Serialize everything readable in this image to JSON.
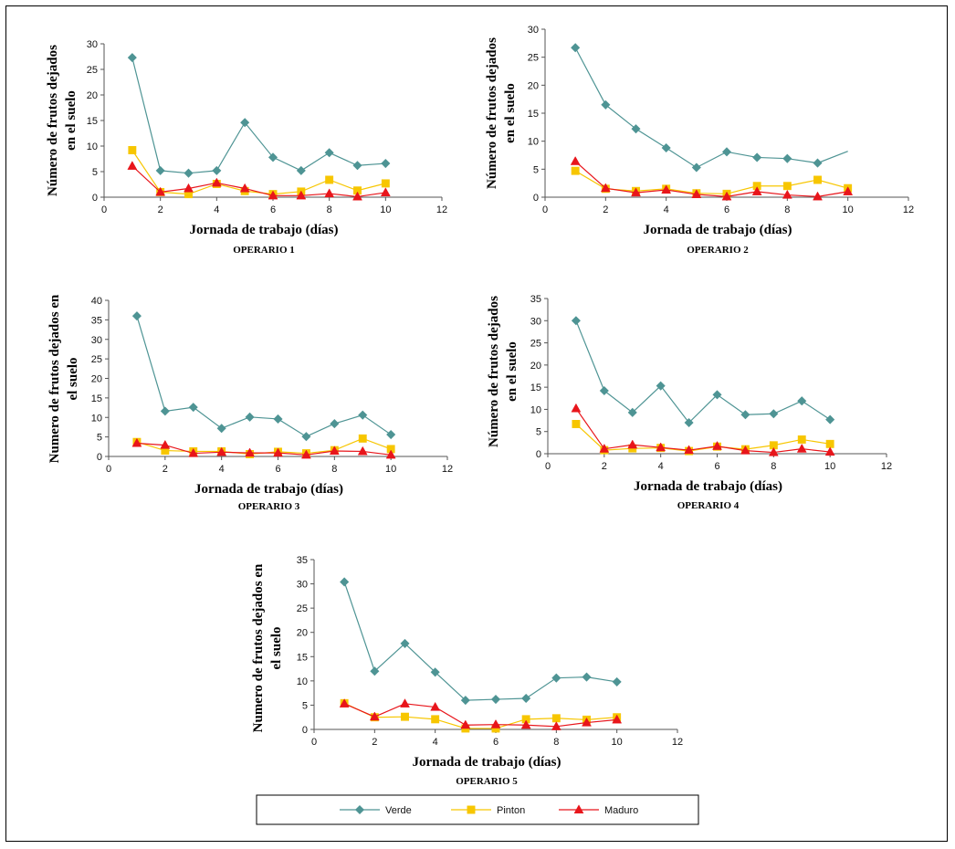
{
  "chart_data": [
    {
      "type": "line",
      "xlabel": "Jornada de trabajo (días)",
      "subtitle": "OPERARIO 1",
      "ylabel": [
        "Número de frutos dejados",
        "en el suelo"
      ],
      "xlim": [
        0,
        12
      ],
      "xticks": [
        0,
        2,
        4,
        6,
        8,
        10,
        12
      ],
      "ylim": [
        0,
        30
      ],
      "yticks": [
        0,
        5,
        10,
        15,
        20,
        25,
        30
      ],
      "x": [
        1,
        2,
        3,
        4,
        5,
        6,
        7,
        8,
        9,
        10
      ],
      "series": [
        {
          "name": "Verde",
          "values": [
            27.3,
            5.2,
            4.7,
            5.2,
            14.6,
            7.8,
            5.2,
            8.7,
            6.2,
            6.6
          ]
        },
        {
          "name": "Pinton",
          "values": [
            9.2,
            1.0,
            0.6,
            2.6,
            1.2,
            0.6,
            1.1,
            3.4,
            1.3,
            2.7
          ]
        },
        {
          "name": "Maduro",
          "values": [
            6.1,
            1.0,
            1.7,
            2.8,
            1.7,
            0.3,
            0.3,
            0.7,
            0.1,
            0.9
          ]
        }
      ]
    },
    {
      "type": "line",
      "xlabel": "Jornada de trabajo (días)",
      "subtitle": "OPERARIO 2",
      "ylabel": [
        "Número de frutos dejados",
        "en el suelo"
      ],
      "xlim": [
        0,
        12
      ],
      "xticks": [
        0,
        2,
        4,
        6,
        8,
        10,
        12
      ],
      "ylim": [
        0,
        30
      ],
      "yticks": [
        0,
        5,
        10,
        15,
        20,
        25,
        30
      ],
      "x": [
        1,
        2,
        3,
        4,
        5,
        6,
        7,
        8,
        9,
        10
      ],
      "series": [
        {
          "name": "Verde",
          "values": [
            26.7,
            16.5,
            12.2,
            8.8,
            5.3,
            8.1,
            7.1,
            6.9,
            6.1,
            8.2
          ]
        },
        {
          "name": "Pinton",
          "values": [
            4.7,
            1.5,
            1.1,
            1.5,
            0.7,
            0.6,
            2.0,
            2.0,
            3.1,
            1.6
          ]
        },
        {
          "name": "Maduro",
          "values": [
            6.4,
            1.6,
            0.8,
            1.3,
            0.5,
            0.1,
            1.0,
            0.4,
            0.1,
            1.0
          ]
        }
      ],
      "verde_last_marker": false
    },
    {
      "type": "line",
      "xlabel": "Jornada de trabajo (días)",
      "subtitle": "OPERARIO 3",
      "ylabel": [
        "Numero de frutos dejados en",
        "el suelo"
      ],
      "xlim": [
        0,
        12
      ],
      "xticks": [
        0,
        2,
        4,
        6,
        8,
        10,
        12
      ],
      "ylim": [
        0,
        40
      ],
      "yticks": [
        0,
        5,
        10,
        15,
        20,
        25,
        30,
        35,
        40
      ],
      "x": [
        1,
        2,
        3,
        4,
        5,
        6,
        7,
        8,
        9,
        10
      ],
      "series": [
        {
          "name": "Verde",
          "values": [
            36.0,
            11.6,
            12.6,
            7.2,
            10.1,
            9.6,
            5.1,
            8.4,
            10.6,
            5.6
          ]
        },
        {
          "name": "Pinton",
          "values": [
            3.7,
            1.5,
            1.3,
            1.3,
            0.6,
            1.2,
            0.8,
            1.6,
            4.6,
            1.9
          ]
        },
        {
          "name": "Maduro",
          "values": [
            3.4,
            2.9,
            0.8,
            1.1,
            0.9,
            0.9,
            0.4,
            1.4,
            1.3,
            0.4
          ]
        }
      ]
    },
    {
      "type": "line",
      "xlabel": "Jornada de trabajo (días)",
      "subtitle": "OPERARIO 4",
      "ylabel": [
        "Número de frutos dejados",
        "en el suelo"
      ],
      "xlim": [
        0,
        12
      ],
      "xticks": [
        0,
        2,
        4,
        6,
        8,
        10,
        12
      ],
      "ylim": [
        0,
        35
      ],
      "yticks": [
        0,
        5,
        10,
        15,
        20,
        25,
        30,
        35
      ],
      "x": [
        1,
        2,
        3,
        4,
        5,
        6,
        7,
        8,
        9,
        10
      ],
      "series": [
        {
          "name": "Verde",
          "values": [
            30.0,
            14.2,
            9.3,
            15.3,
            7.0,
            13.3,
            8.8,
            9.0,
            11.9,
            7.7
          ]
        },
        {
          "name": "Pinton",
          "values": [
            6.7,
            0.8,
            1.2,
            1.3,
            0.6,
            1.6,
            1.0,
            1.9,
            3.2,
            2.2
          ]
        },
        {
          "name": "Maduro",
          "values": [
            10.2,
            1.1,
            2.0,
            1.4,
            0.8,
            1.7,
            0.7,
            0.3,
            1.1,
            0.4
          ]
        }
      ]
    },
    {
      "type": "line",
      "xlabel": "Jornada de trabajo (días)",
      "subtitle": "OPERARIO 5",
      "ylabel": [
        "Numero de frutos dejados en",
        "el suelo"
      ],
      "xlim": [
        0,
        12
      ],
      "xticks": [
        0,
        2,
        4,
        6,
        8,
        10,
        12
      ],
      "ylim": [
        0,
        35
      ],
      "yticks": [
        0,
        5,
        10,
        15,
        20,
        25,
        30,
        35
      ],
      "x": [
        1,
        2,
        3,
        4,
        5,
        6,
        7,
        8,
        9,
        10
      ],
      "series": [
        {
          "name": "Verde",
          "values": [
            30.4,
            12.0,
            17.7,
            11.8,
            6.0,
            6.2,
            6.4,
            10.6,
            10.8,
            9.8
          ]
        },
        {
          "name": "Pinton",
          "values": [
            5.4,
            2.5,
            2.6,
            2.1,
            0.2,
            0.2,
            2.1,
            2.3,
            2.0,
            2.5
          ]
        },
        {
          "name": "Maduro",
          "values": [
            5.3,
            2.6,
            5.3,
            4.6,
            0.9,
            1.0,
            0.9,
            0.6,
            1.4,
            2.0
          ]
        }
      ]
    }
  ],
  "legend": {
    "items": [
      {
        "name": "Verde",
        "marker": "diamond",
        "color": "#4E9494"
      },
      {
        "name": "Pinton",
        "marker": "square",
        "color": "#F7C600"
      },
      {
        "name": "Maduro",
        "marker": "triangle",
        "color": "#E8151B"
      }
    ]
  },
  "colors": {
    "verde": "#4E9494",
    "pinton": "#F7C600",
    "maduro": "#E8151B",
    "axis": "#555555"
  }
}
